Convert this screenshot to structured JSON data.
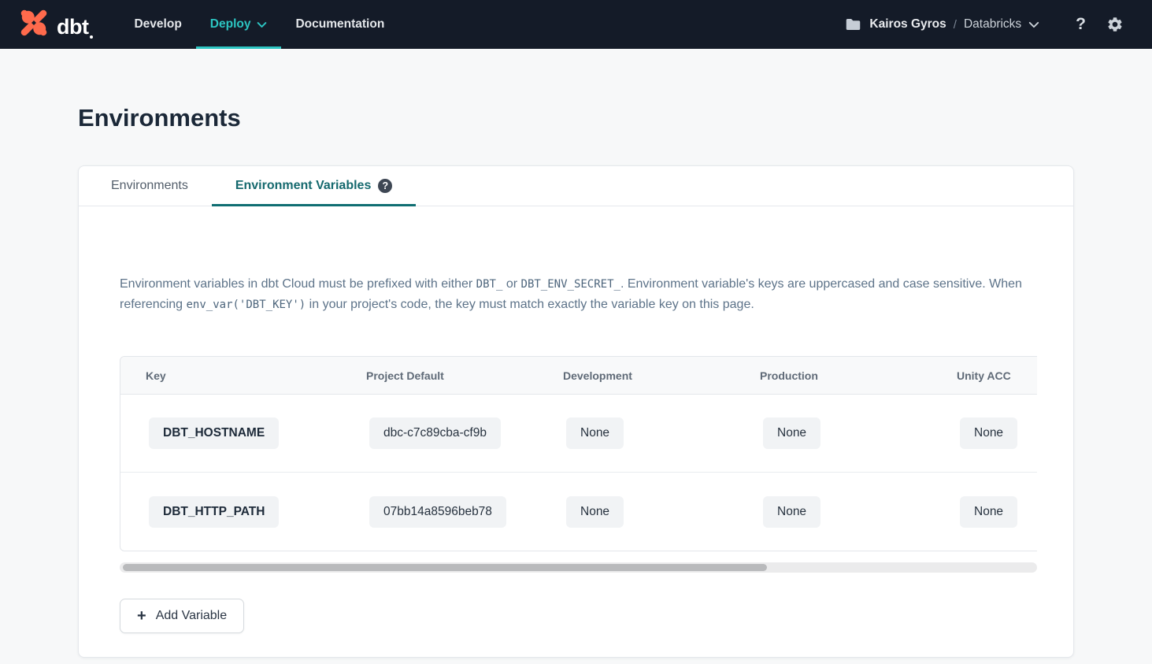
{
  "navbar": {
    "wordmark": "dbt",
    "items": [
      {
        "label": "Develop",
        "active": false,
        "has_chevron": false
      },
      {
        "label": "Deploy",
        "active": true,
        "has_chevron": true
      },
      {
        "label": "Documentation",
        "active": false,
        "has_chevron": false
      }
    ],
    "project": {
      "name": "Kairos Gyros",
      "separator": "/",
      "environment": "Databricks"
    },
    "help_glyph": "?"
  },
  "page": {
    "title": "Environments"
  },
  "tabs": [
    {
      "label": "Environments",
      "active": false
    },
    {
      "label": "Environment Variables",
      "active": true,
      "help_glyph": "?"
    }
  ],
  "description": {
    "segments": [
      {
        "text": "Environment variables in dbt Cloud must be prefixed with either ",
        "code": false
      },
      {
        "text": "DBT_",
        "code": true
      },
      {
        "text": " or ",
        "code": false
      },
      {
        "text": "DBT_ENV_SECRET_",
        "code": true
      },
      {
        "text": ". Environment variable's keys are uppercased and case sensitive. When referencing ",
        "code": false
      },
      {
        "text": "env_var('DBT_KEY')",
        "code": true
      },
      {
        "text": " in your project's code, the key must match exactly the variable key on this page.",
        "code": false
      }
    ]
  },
  "table": {
    "columns": [
      "Key",
      "Project Default",
      "Development",
      "Production",
      "Unity ACC"
    ],
    "rows": [
      {
        "key": "DBT_HOSTNAME",
        "values": [
          "dbc-c7c89cba-cf9b",
          "None",
          "None",
          "None"
        ]
      },
      {
        "key": "DBT_HTTP_PATH",
        "values": [
          "07bb14a8596beb78",
          "None",
          "None",
          "None"
        ]
      }
    ]
  },
  "actions": {
    "add_variable_label": "Add Variable",
    "plus_glyph": "+"
  },
  "colors": {
    "navbar_bg": "#141b28",
    "accent_teal_bright": "#2cc5c2",
    "accent_teal_dark": "#0f6e72",
    "logo_orange": "#ff6a4c",
    "page_bg": "#f7f8f9",
    "text_dark": "#1b2838",
    "text_muted": "#5d7389"
  }
}
